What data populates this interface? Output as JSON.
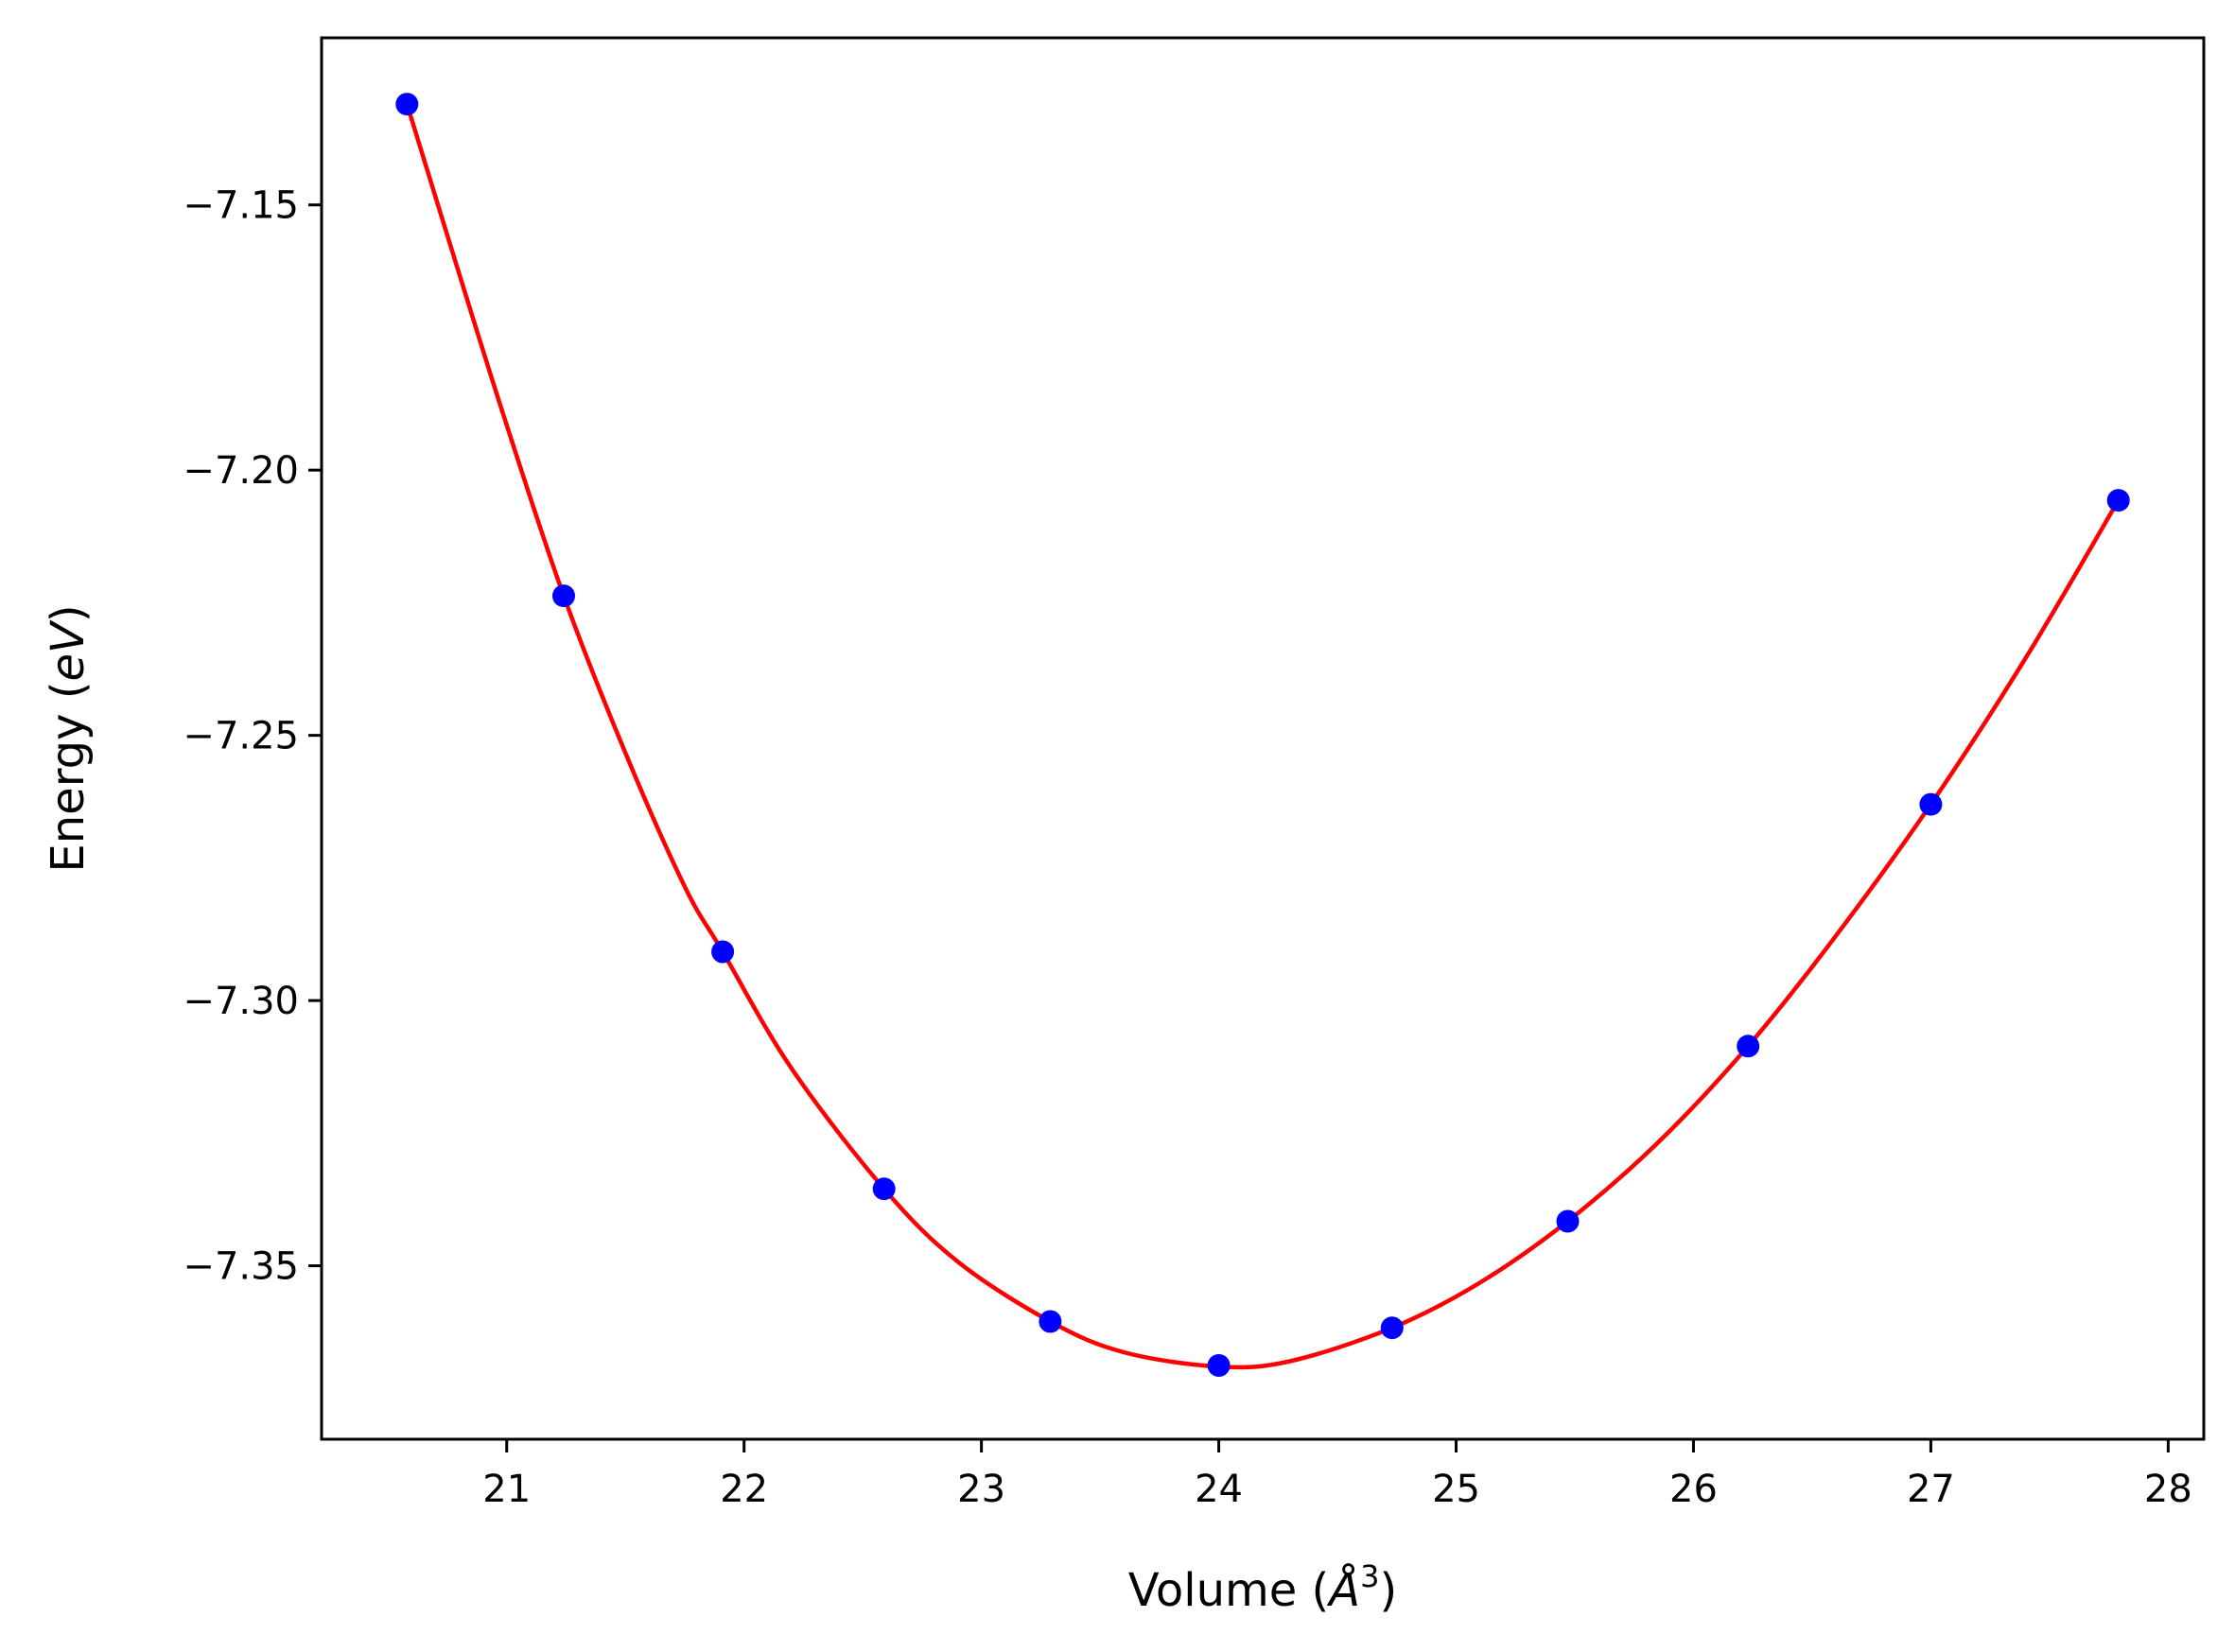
{
  "chart_data": {
    "type": "line",
    "title": "",
    "xlabel_parts": {
      "prefix": "Volume (",
      "symbol": "Å",
      "sup": "3",
      "suffix": ")"
    },
    "ylabel_parts": {
      "prefix": "Energy (",
      "symbol": "eV",
      "suffix": ")"
    },
    "xlim": [
      20.22,
      28.15
    ],
    "ylim": [
      -7.3827,
      -7.1185
    ],
    "x_ticks": [
      21,
      22,
      23,
      24,
      25,
      26,
      27,
      28
    ],
    "x_tick_labels": [
      "21",
      "22",
      "23",
      "24",
      "25",
      "26",
      "27",
      "28"
    ],
    "y_ticks": [
      -7.15,
      -7.2,
      -7.25,
      -7.3,
      -7.35
    ],
    "y_tick_labels": [
      "−7.15",
      "−7.20",
      "−7.25",
      "−7.30",
      "−7.35"
    ],
    "grid": false,
    "series": [
      {
        "kind": "scatter",
        "color": "#0000ff",
        "x": [
          20.58,
          21.24,
          21.91,
          22.59,
          23.29,
          24.0,
          24.73,
          25.47,
          26.23,
          27.0,
          27.79
        ],
        "y": [
          -7.131,
          -7.2237,
          -7.2908,
          -7.3355,
          -7.3605,
          -7.3688,
          -7.3617,
          -7.3416,
          -7.3086,
          -7.263,
          -7.2057
        ]
      },
      {
        "kind": "line",
        "color": "#ff0000",
        "x": [
          20.58,
          20.8,
          21.0,
          21.24,
          21.5,
          21.75,
          21.91,
          22.2,
          22.59,
          22.9,
          23.29,
          23.6,
          24.0,
          24.3,
          24.73,
          25.1,
          25.47,
          25.85,
          26.23,
          26.6,
          27.0,
          27.4,
          27.79
        ],
        "y": [
          -7.131,
          -7.163,
          -7.1915,
          -7.2237,
          -7.2533,
          -7.2785,
          -7.2908,
          -7.3128,
          -7.3355,
          -7.3492,
          -7.3605,
          -7.3663,
          -7.369,
          -7.368,
          -7.3617,
          -7.3532,
          -7.3416,
          -7.3268,
          -7.3086,
          -7.2878,
          -7.263,
          -7.2354,
          -7.2057
        ]
      }
    ]
  }
}
